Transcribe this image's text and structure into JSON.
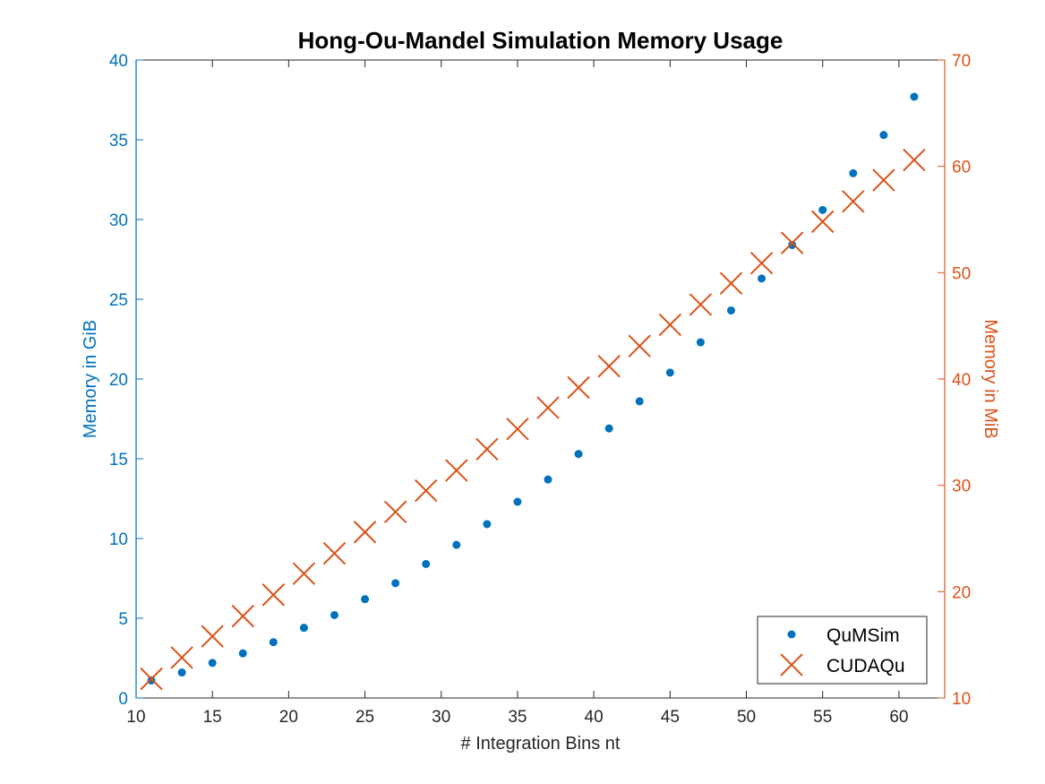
{
  "chart_data": {
    "type": "scatter",
    "title": "Hong-Ou-Mandel Simulation Memory Usage",
    "xlabel": "# Integration Bins nt",
    "ylabel_left": "Memory in GiB",
    "ylabel_right": "Memory in MiB",
    "xlim": [
      10,
      63
    ],
    "ylim_left": [
      0,
      40
    ],
    "ylim_right": [
      10,
      70
    ],
    "x_ticks": [
      10,
      15,
      20,
      25,
      30,
      35,
      40,
      45,
      50,
      55,
      60
    ],
    "y_ticks_left": [
      0,
      5,
      10,
      15,
      20,
      25,
      30,
      35,
      40
    ],
    "y_ticks_right": [
      10,
      20,
      30,
      40,
      50,
      60,
      70
    ],
    "grid": false,
    "legend_position": "bottom-right",
    "colors": {
      "left_axis": "#0072BD",
      "right_axis": "#D95319"
    },
    "series": [
      {
        "name": "QuMSim",
        "axis": "left",
        "marker": "dot",
        "color": "#0072BD",
        "x": [
          11,
          13,
          15,
          17,
          19,
          21,
          23,
          25,
          27,
          29,
          31,
          33,
          35,
          37,
          39,
          41,
          43,
          45,
          47,
          49,
          51,
          53,
          55,
          57,
          59,
          61
        ],
        "y": [
          1.1,
          1.6,
          2.2,
          2.8,
          3.5,
          4.4,
          5.2,
          6.2,
          7.2,
          8.4,
          9.6,
          10.9,
          12.3,
          13.7,
          15.3,
          16.9,
          18.6,
          20.4,
          22.3,
          24.3,
          26.3,
          28.4,
          30.6,
          32.9,
          35.3,
          37.7
        ]
      },
      {
        "name": "CUDAQu",
        "axis": "right",
        "marker": "x",
        "color": "#D95319",
        "x": [
          11,
          13,
          15,
          17,
          19,
          21,
          23,
          25,
          27,
          29,
          31,
          33,
          35,
          37,
          39,
          41,
          43,
          45,
          47,
          49,
          51,
          53,
          55,
          57,
          59,
          61
        ],
        "y": [
          11.8,
          13.8,
          15.8,
          17.7,
          19.7,
          21.7,
          23.6,
          25.6,
          27.5,
          29.5,
          31.4,
          33.4,
          35.3,
          37.3,
          39.2,
          41.2,
          43.1,
          45.1,
          47.0,
          49.0,
          50.9,
          52.8,
          54.8,
          56.7,
          58.7,
          60.6
        ]
      }
    ]
  }
}
